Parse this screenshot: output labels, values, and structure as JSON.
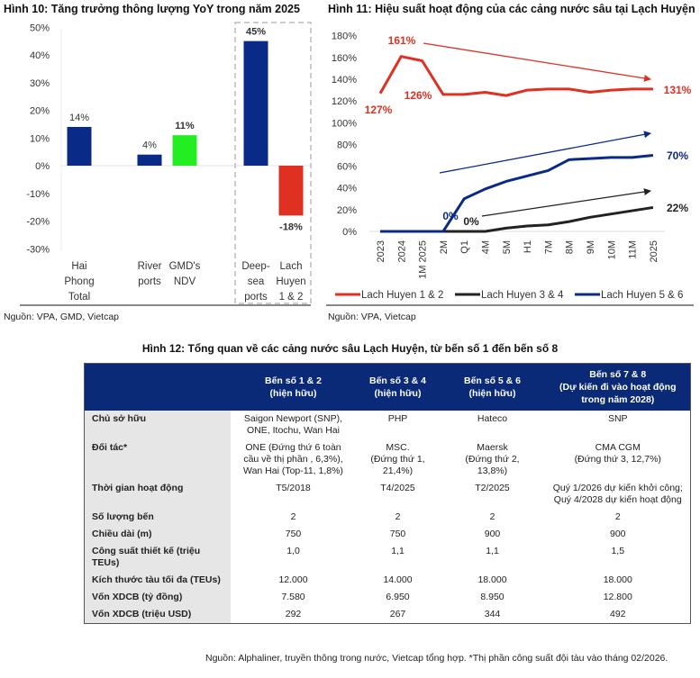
{
  "chart_data": [
    {
      "type": "bar",
      "title": "Hình 10: Tăng trưởng thông lượng YoY trong năm 2025",
      "categories": [
        "Hai Phong Total",
        "River ports",
        "GMD's NDV",
        "Deep-sea ports",
        "Lach Huyen 1 & 2"
      ],
      "category_lines": [
        [
          "Hai",
          "Phong",
          "Total"
        ],
        [
          "River",
          "ports"
        ],
        [
          "GMD's",
          "NDV"
        ],
        [
          "Deep-",
          "sea",
          "ports"
        ],
        [
          "Lach",
          "Huyen",
          "1 & 2"
        ]
      ],
      "values": [
        14,
        4,
        11,
        45,
        -18
      ],
      "labels": [
        "14%",
        "4%",
        "11%",
        "45%",
        "-18%"
      ],
      "colors": [
        "#0a2a87",
        "#0a2a87",
        "#22ee22",
        "#0a2a87",
        "#e03022"
      ],
      "ylim": [
        -30,
        50
      ],
      "yticks": [
        "50%",
        "40%",
        "30%",
        "20%",
        "10%",
        "0%",
        "-10%",
        "-20%",
        "-30%"
      ],
      "highlight": "dashed box around Deep-sea ports and Lach Huyen 1 & 2",
      "source": "Nguồn: VPA, GMD, Vietcap"
    },
    {
      "type": "line",
      "title": "Hình 11: Hiệu suất hoạt động của các cảng nước sâu tại Lạch Huyện",
      "categories": [
        "2023",
        "2024",
        "1M 2025",
        "2M",
        "Q1",
        "4M",
        "5M",
        "H1",
        "7M",
        "8M",
        "9M",
        "10M",
        "11M",
        "2025"
      ],
      "ylim": [
        0,
        180
      ],
      "yticks": [
        "180%",
        "160%",
        "140%",
        "120%",
        "100%",
        "80%",
        "60%",
        "40%",
        "20%",
        "0%"
      ],
      "series": [
        {
          "name": "Lach Huyen 1 & 2",
          "color": "#e03022",
          "values": [
            127,
            161,
            157,
            126,
            126,
            128,
            125,
            130,
            131,
            131,
            128,
            130,
            131,
            131
          ]
        },
        {
          "name": "Lach Huyen 3 & 4",
          "color": "#222222",
          "values": [
            0,
            0,
            0,
            0,
            0,
            0,
            3,
            5,
            6,
            9,
            13,
            16,
            19,
            22
          ]
        },
        {
          "name": "Lach Huyen 5 & 6",
          "color": "#0a2a87",
          "values": [
            0,
            0,
            0,
            0,
            30,
            39,
            46,
            51,
            56,
            66,
            67,
            68,
            68,
            70
          ]
        }
      ],
      "annotations": [
        {
          "text": "161%",
          "color": "#e03022"
        },
        {
          "text": "127%",
          "color": "#e03022"
        },
        {
          "text": "126%",
          "color": "#e03022"
        },
        {
          "text": "131%",
          "color": "#e03022"
        },
        {
          "text": "70%",
          "color": "#0a2a87"
        },
        {
          "text": "0%",
          "color": "#0a2a87"
        },
        {
          "text": "0%",
          "color": "#222222"
        },
        {
          "text": "22%",
          "color": "#222222"
        }
      ],
      "source": "Nguồn: VPA, Vietcap"
    }
  ],
  "table": {
    "title": "Hình 12: Tổng quan về các cảng nước sâu Lạch Huyện, từ bến số 1 đến bến số 8",
    "headers": [
      "",
      "Bến số 1 & 2\n(hiện hữu)",
      "Bến số 3 & 4\n(hiện hữu)",
      "Bến số 5 & 6\n(hiện hữu)",
      "Bến số 7 & 8\n(Dự kiến đi vào hoạt động\ntrong năm 2028)"
    ],
    "rows": [
      [
        "Chủ sở hữu",
        "Saigon Newport (SNP),\nONE, Itochu, Wan Hai",
        "PHP",
        "Hateco",
        "SNP"
      ],
      [
        "Đối tác*",
        "ONE (Đứng thứ 6 toàn\ncầu về thị phần , 6,3%),\nWan Hai (Top-11, 1,8%)",
        "MSC.\n(Đứng thứ 1,\n21,4%)",
        "Maersk\n(Đứng thứ 2,\n13,8%)",
        "CMA CGM\n(Đứng thứ 3, 12,7%)"
      ],
      [
        "Thời gian hoạt động",
        "T5/2018",
        "T4/2025",
        "T2/2025",
        "Quý 1/2026 dự kiến khởi công;\nQuý 4/2028 dự kiến hoạt động"
      ],
      [
        "Số lượng bến",
        "2",
        "2",
        "2",
        "2"
      ],
      [
        "Chiều dài (m)",
        "750",
        "750",
        "900",
        "900"
      ],
      [
        "Công suất thiết kế (triệu\nTEUs)",
        "1,0",
        "1,1",
        "1,1",
        "1,5"
      ],
      [
        "Kích thước tàu tối đa (TEUs)",
        "12.000",
        "14.000",
        "18.000",
        "18.000"
      ],
      [
        "Vốn XDCB (tỷ đồng)",
        "7.580",
        "6.950",
        "8.950",
        "12.800"
      ],
      [
        "Vốn XDCB (triệu USD)",
        "292",
        "267",
        "344",
        "492"
      ]
    ],
    "source": "Nguồn: Alphaliner, truyền thông trong nước, Vietcap tổng hợp. *Thị phần công suất đội tàu vào tháng 02/2026."
  }
}
